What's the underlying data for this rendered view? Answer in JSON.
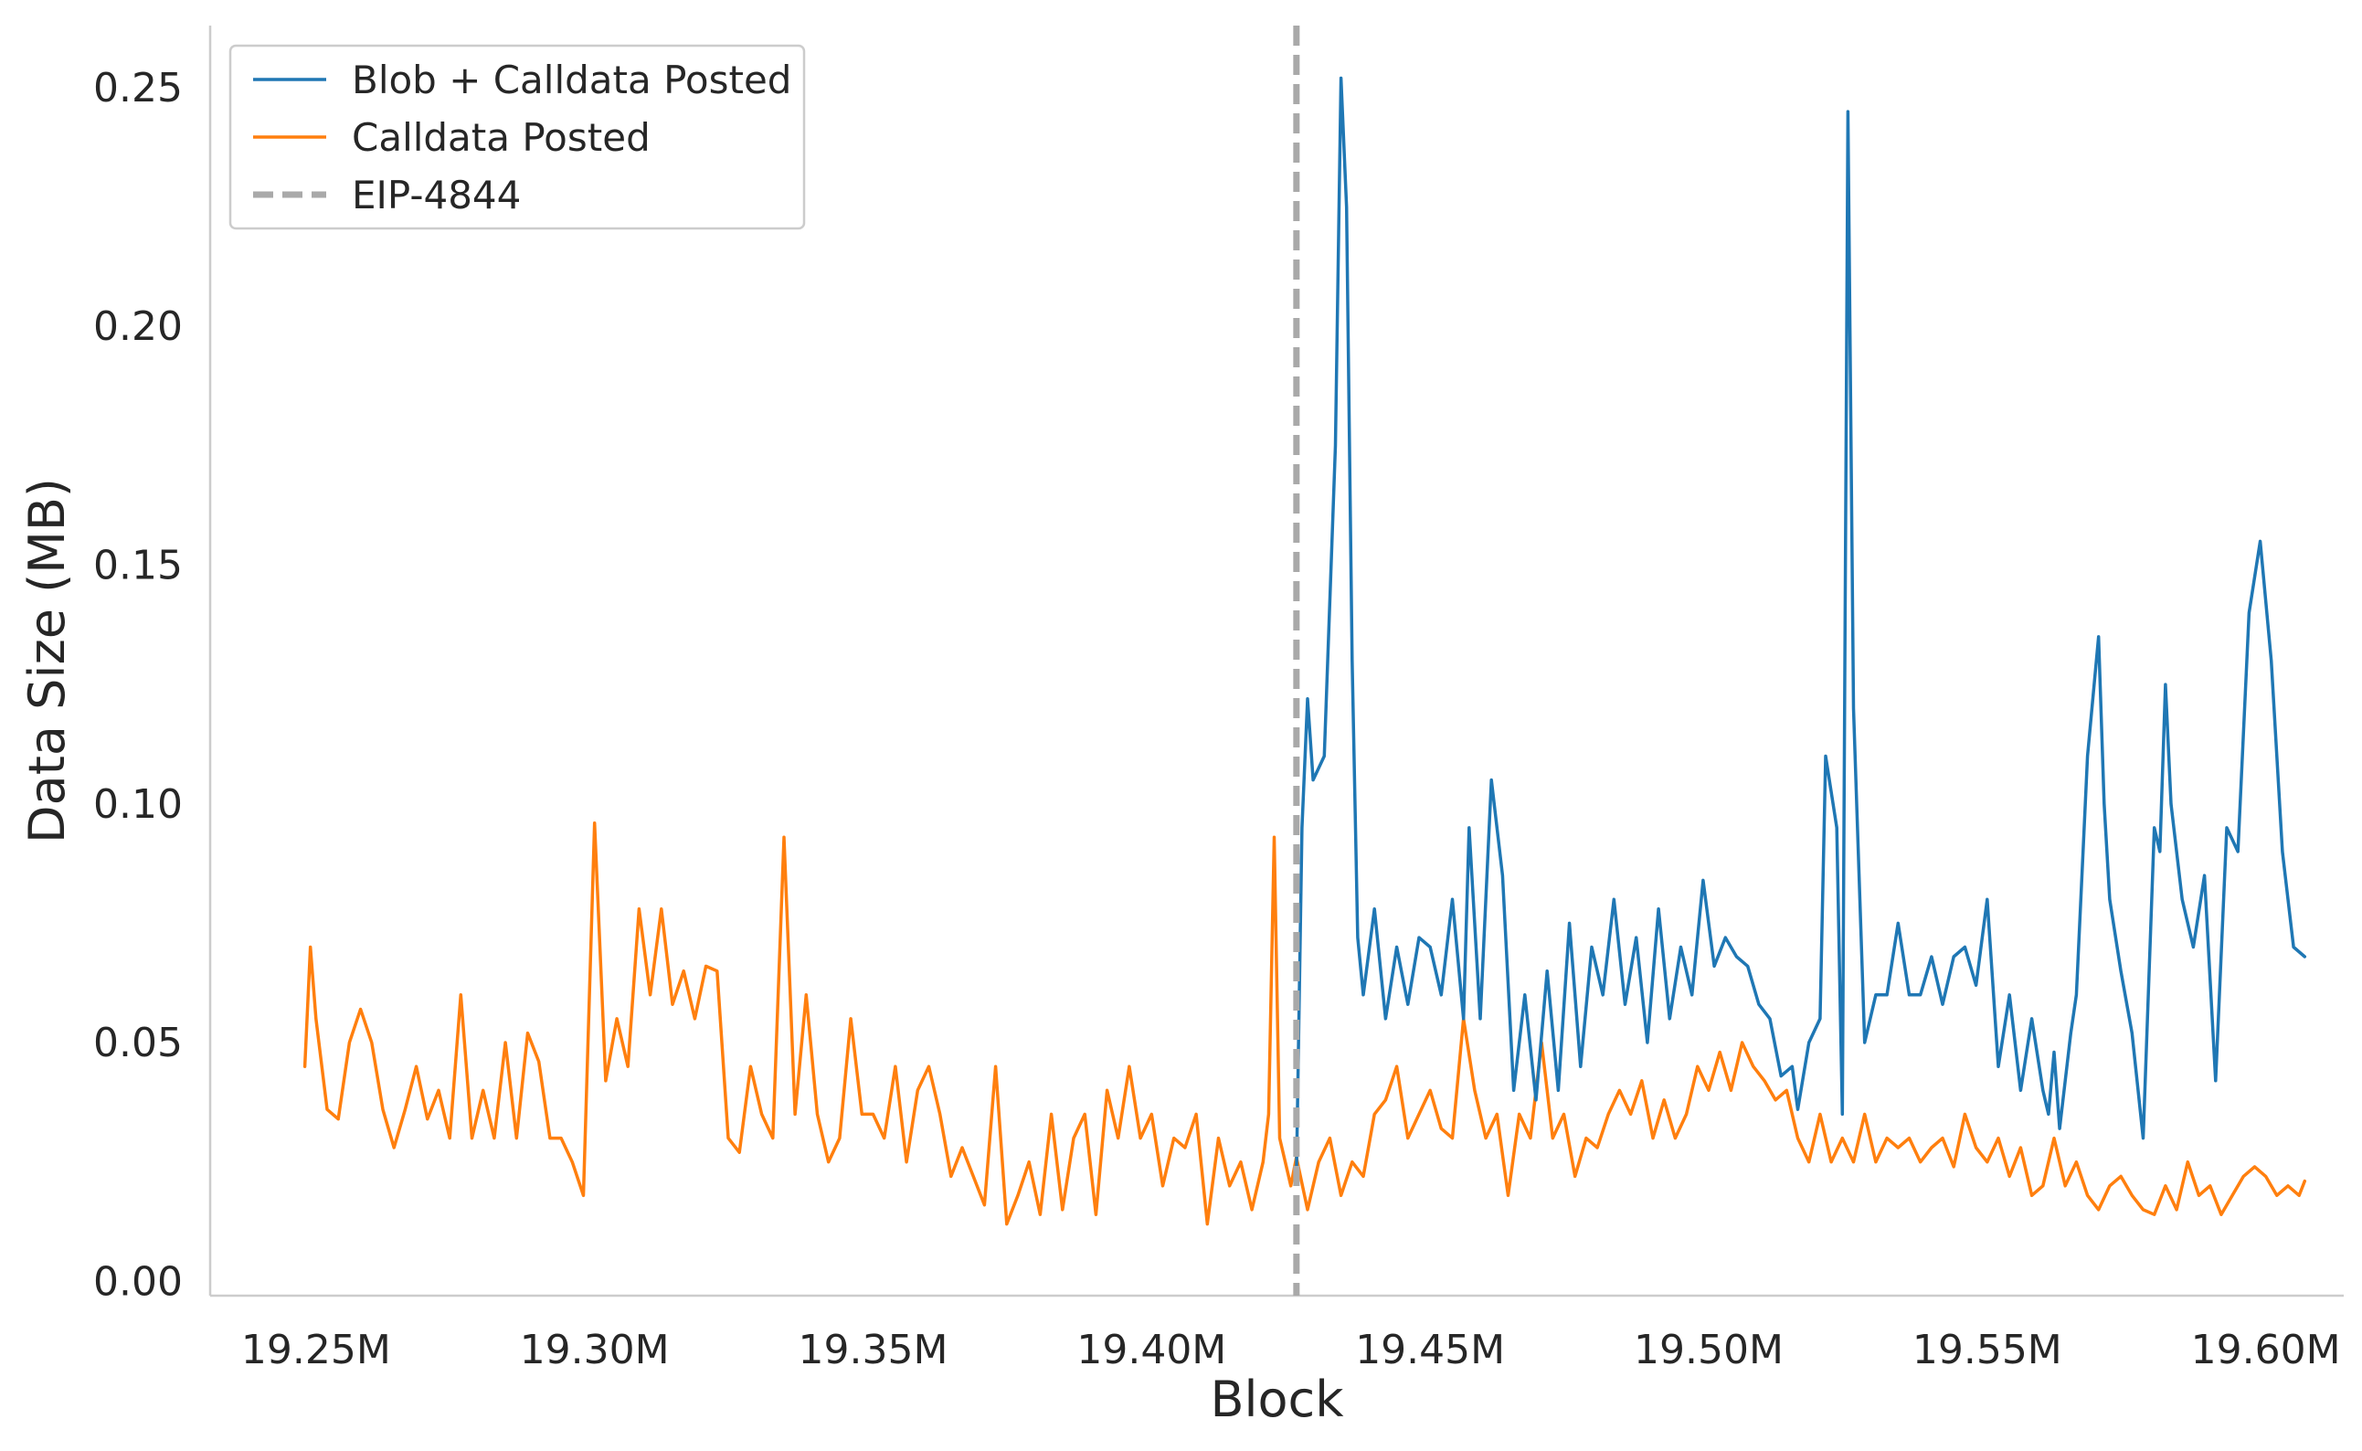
{
  "chart_data": {
    "type": "line",
    "xlabel": "Block",
    "ylabel": "Data Size (MB)",
    "xlim": [
      19231000,
      19614000
    ],
    "ylim": [
      -0.003,
      0.263
    ],
    "x_ticks": [
      19250000,
      19300000,
      19350000,
      19400000,
      19450000,
      19500000,
      19550000,
      19600000
    ],
    "x_tick_labels": [
      "19.25M",
      "19.30M",
      "19.35M",
      "19.40M",
      "19.45M",
      "19.50M",
      "19.55M",
      "19.60M"
    ],
    "y_ticks": [
      0.0,
      0.05,
      0.1,
      0.15,
      0.2,
      0.25
    ],
    "y_tick_labels": [
      "0.00",
      "0.05",
      "0.10",
      "0.15",
      "0.20",
      "0.25"
    ],
    "grid": false,
    "legend_position": "upper-left",
    "vline": {
      "x": 19426000,
      "label": "EIP-4844",
      "color": "#a9a9a9",
      "style": "dashed"
    },
    "series": [
      {
        "name": "Blob + Calldata Posted",
        "color": "#1f77b4",
        "x": [
          19426000,
          19427000,
          19428000,
          19429000,
          19431000,
          19433000,
          19434000,
          19435000,
          19436000,
          19437000,
          19438000,
          19440000,
          19442000,
          19444000,
          19446000,
          19448000,
          19450000,
          19452000,
          19454000,
          19456000,
          19457000,
          19459000,
          19461000,
          19463000,
          19465000,
          19467000,
          19469000,
          19471000,
          19473000,
          19475000,
          19477000,
          19479000,
          19481000,
          19483000,
          19485000,
          19487000,
          19489000,
          19491000,
          19493000,
          19495000,
          19497000,
          19499000,
          19501000,
          19503000,
          19505000,
          19507000,
          19509000,
          19511000,
          19513000,
          19515000,
          19516000,
          19518000,
          19520000,
          19521000,
          19523000,
          19524000,
          19525000,
          19526000,
          19528000,
          19530000,
          19532000,
          19534000,
          19536000,
          19538000,
          19540000,
          19542000,
          19544000,
          19546000,
          19548000,
          19550000,
          19552000,
          19554000,
          19556000,
          19558000,
          19560000,
          19561000,
          19562000,
          19563000,
          19565000,
          19566000,
          19568000,
          19570000,
          19571000,
          19572000,
          19574000,
          19576000,
          19578000,
          19580000,
          19581000,
          19582000,
          19583000,
          19585000,
          19587000,
          19589000,
          19591000,
          19593000,
          19595000,
          19597000,
          19599000,
          19601000,
          19603000,
          19605000,
          19607000
        ],
        "y": [
          0.022,
          0.095,
          0.122,
          0.105,
          0.11,
          0.175,
          0.252,
          0.225,
          0.13,
          0.072,
          0.06,
          0.078,
          0.055,
          0.07,
          0.058,
          0.072,
          0.07,
          0.06,
          0.08,
          0.055,
          0.095,
          0.055,
          0.105,
          0.085,
          0.04,
          0.06,
          0.038,
          0.065,
          0.04,
          0.075,
          0.045,
          0.07,
          0.06,
          0.08,
          0.058,
          0.072,
          0.05,
          0.078,
          0.055,
          0.07,
          0.06,
          0.084,
          0.066,
          0.072,
          0.068,
          0.066,
          0.058,
          0.055,
          0.043,
          0.045,
          0.036,
          0.05,
          0.055,
          0.11,
          0.095,
          0.035,
          0.245,
          0.12,
          0.05,
          0.06,
          0.06,
          0.075,
          0.06,
          0.06,
          0.068,
          0.058,
          0.068,
          0.07,
          0.062,
          0.08,
          0.045,
          0.06,
          0.04,
          0.055,
          0.04,
          0.035,
          0.048,
          0.032,
          0.052,
          0.06,
          0.11,
          0.135,
          0.1,
          0.08,
          0.065,
          0.052,
          0.03,
          0.095,
          0.09,
          0.125,
          0.1,
          0.08,
          0.07,
          0.085,
          0.042,
          0.095,
          0.09,
          0.14,
          0.155,
          0.13,
          0.09,
          0.07,
          0.068
        ],
        "note": ""
      },
      {
        "name": "Calldata Posted",
        "color": "#ff7f0e",
        "x": [
          19248000,
          19249000,
          19250000,
          19252000,
          19254000,
          19256000,
          19258000,
          19260000,
          19262000,
          19264000,
          19266000,
          19268000,
          19270000,
          19272000,
          19274000,
          19276000,
          19278000,
          19280000,
          19282000,
          19284000,
          19286000,
          19288000,
          19290000,
          19292000,
          19294000,
          19296000,
          19298000,
          19300000,
          19302000,
          19304000,
          19306000,
          19308000,
          19310000,
          19312000,
          19314000,
          19316000,
          19318000,
          19320000,
          19322000,
          19324000,
          19326000,
          19328000,
          19330000,
          19332000,
          19334000,
          19336000,
          19338000,
          19340000,
          19342000,
          19344000,
          19346000,
          19348000,
          19350000,
          19352000,
          19354000,
          19356000,
          19358000,
          19360000,
          19362000,
          19364000,
          19366000,
          19368000,
          19370000,
          19372000,
          19374000,
          19376000,
          19378000,
          19380000,
          19382000,
          19384000,
          19386000,
          19388000,
          19390000,
          19392000,
          19394000,
          19396000,
          19398000,
          19400000,
          19402000,
          19404000,
          19406000,
          19408000,
          19410000,
          19412000,
          19414000,
          19416000,
          19418000,
          19420000,
          19421000,
          19422000,
          19423000,
          19425000,
          19426000,
          19428000,
          19430000,
          19432000,
          19434000,
          19436000,
          19438000,
          19440000,
          19442000,
          19444000,
          19446000,
          19448000,
          19450000,
          19452000,
          19454000,
          19456000,
          19458000,
          19460000,
          19462000,
          19464000,
          19466000,
          19468000,
          19470000,
          19472000,
          19474000,
          19476000,
          19478000,
          19480000,
          19482000,
          19484000,
          19486000,
          19488000,
          19490000,
          19492000,
          19494000,
          19496000,
          19498000,
          19500000,
          19502000,
          19504000,
          19506000,
          19508000,
          19510000,
          19512000,
          19514000,
          19516000,
          19518000,
          19520000,
          19522000,
          19524000,
          19526000,
          19528000,
          19530000,
          19532000,
          19534000,
          19536000,
          19538000,
          19540000,
          19542000,
          19544000,
          19546000,
          19548000,
          19550000,
          19552000,
          19554000,
          19556000,
          19558000,
          19560000,
          19562000,
          19564000,
          19566000,
          19568000,
          19570000,
          19572000,
          19574000,
          19576000,
          19578000,
          19580000,
          19582000,
          19584000,
          19586000,
          19588000,
          19590000,
          19592000,
          19594000,
          19596000,
          19598000,
          19600000,
          19602000,
          19604000,
          19606000,
          19607000
        ],
        "y": [
          0.045,
          0.07,
          0.055,
          0.036,
          0.034,
          0.05,
          0.057,
          0.05,
          0.036,
          0.028,
          0.036,
          0.045,
          0.034,
          0.04,
          0.03,
          0.06,
          0.03,
          0.04,
          0.03,
          0.05,
          0.03,
          0.052,
          0.046,
          0.03,
          0.03,
          0.025,
          0.018,
          0.096,
          0.042,
          0.055,
          0.045,
          0.078,
          0.06,
          0.078,
          0.058,
          0.065,
          0.055,
          0.066,
          0.065,
          0.03,
          0.027,
          0.045,
          0.035,
          0.03,
          0.093,
          0.035,
          0.06,
          0.035,
          0.025,
          0.03,
          0.055,
          0.035,
          0.035,
          0.03,
          0.045,
          0.025,
          0.04,
          0.045,
          0.035,
          0.022,
          0.028,
          0.022,
          0.016,
          0.045,
          0.012,
          0.018,
          0.025,
          0.014,
          0.035,
          0.015,
          0.03,
          0.035,
          0.014,
          0.04,
          0.03,
          0.045,
          0.03,
          0.035,
          0.02,
          0.03,
          0.028,
          0.035,
          0.012,
          0.03,
          0.02,
          0.025,
          0.015,
          0.025,
          0.035,
          0.093,
          0.03,
          0.02,
          0.026,
          0.015,
          0.025,
          0.03,
          0.018,
          0.025,
          0.022,
          0.035,
          0.038,
          0.045,
          0.03,
          0.035,
          0.04,
          0.032,
          0.03,
          0.055,
          0.04,
          0.03,
          0.035,
          0.018,
          0.035,
          0.03,
          0.05,
          0.03,
          0.035,
          0.022,
          0.03,
          0.028,
          0.035,
          0.04,
          0.035,
          0.042,
          0.03,
          0.038,
          0.03,
          0.035,
          0.045,
          0.04,
          0.048,
          0.04,
          0.05,
          0.045,
          0.042,
          0.038,
          0.04,
          0.03,
          0.025,
          0.035,
          0.025,
          0.03,
          0.025,
          0.035,
          0.025,
          0.03,
          0.028,
          0.03,
          0.025,
          0.028,
          0.03,
          0.024,
          0.035,
          0.028,
          0.025,
          0.03,
          0.022,
          0.028,
          0.018,
          0.02,
          0.03,
          0.02,
          0.025,
          0.018,
          0.015,
          0.02,
          0.022,
          0.018,
          0.015,
          0.014,
          0.02,
          0.015,
          0.025,
          0.018,
          0.02,
          0.014,
          0.018,
          0.022,
          0.024,
          0.022,
          0.018,
          0.02,
          0.018,
          0.021
        ],
        "note": ""
      }
    ]
  }
}
